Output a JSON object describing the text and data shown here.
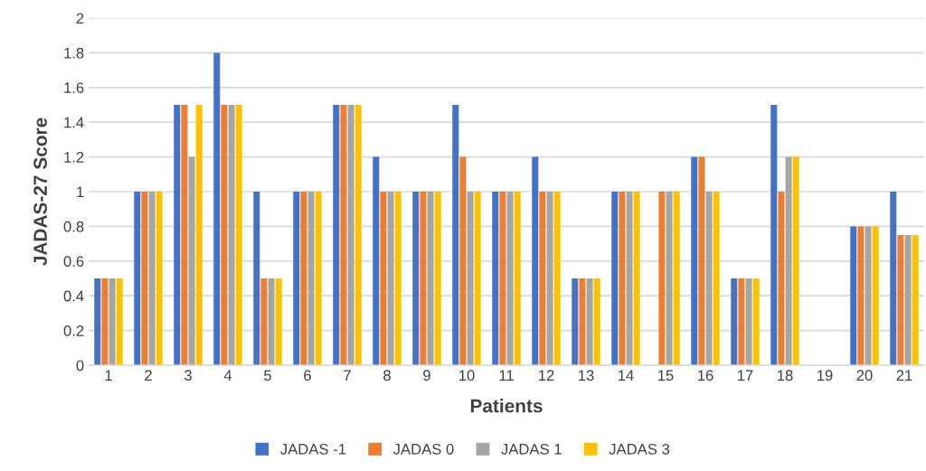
{
  "chart_data": {
    "type": "bar",
    "xlabel": "Patients",
    "ylabel": "JADAS-27 Score",
    "categories": [
      "1",
      "2",
      "3",
      "4",
      "5",
      "6",
      "7",
      "8",
      "9",
      "10",
      "11",
      "12",
      "13",
      "14",
      "15",
      "16",
      "17",
      "18",
      "19",
      "20",
      "21"
    ],
    "series": [
      {
        "name": "JADAS -1",
        "color": "#4472c4",
        "values": [
          0.5,
          1,
          1.5,
          1.8,
          1,
          1,
          1.5,
          1.2,
          1,
          1.5,
          1,
          1.2,
          0.5,
          1,
          null,
          1.2,
          0.5,
          1.5,
          null,
          0.8,
          1
        ]
      },
      {
        "name": "JADAS 0",
        "color": "#ed7d31",
        "values": [
          0.5,
          1,
          1.5,
          1.5,
          0.5,
          1,
          1.5,
          1,
          1,
          1.2,
          1,
          1,
          0.5,
          1,
          1,
          1.2,
          0.5,
          1,
          null,
          0.8,
          0.75
        ]
      },
      {
        "name": "JADAS 1",
        "color": "#a5a5a5",
        "values": [
          0.5,
          1,
          1.2,
          1.5,
          0.5,
          1,
          1.5,
          1,
          1,
          1,
          1,
          1,
          0.5,
          1,
          1,
          1,
          0.5,
          1.2,
          null,
          0.8,
          0.75
        ]
      },
      {
        "name": "JADAS 3",
        "color": "#ffc000",
        "values": [
          0.5,
          1,
          1.5,
          1.5,
          0.5,
          1,
          1.5,
          1,
          1,
          1,
          1,
          1,
          0.5,
          1,
          1,
          1,
          0.5,
          1.2,
          null,
          0.8,
          0.75
        ]
      }
    ],
    "ylim": [
      0,
      2
    ],
    "yticks": [
      0,
      0.2,
      0.4,
      0.6,
      0.8,
      1,
      1.2,
      1.4,
      1.6,
      1.8,
      2
    ],
    "grid": "y",
    "legend": "bottom"
  }
}
